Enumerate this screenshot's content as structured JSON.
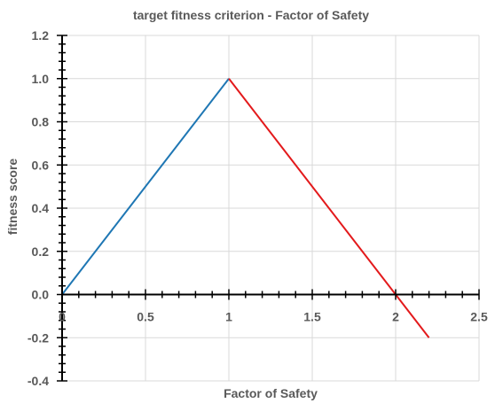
{
  "chart_data": {
    "type": "line",
    "title": "target fitness criterion - Factor of Safety",
    "xlabel": "Factor of Safety",
    "ylabel": "fitness score",
    "xlim": [
      0,
      2.5
    ],
    "ylim": [
      -0.4,
      1.2
    ],
    "x_ticks": [
      0,
      0.5,
      1,
      1.5,
      2,
      2.5
    ],
    "x_tick_labels": [
      "0",
      "0.5",
      "1",
      "1.5",
      "2",
      "2.5"
    ],
    "y_ticks": [
      -0.4,
      -0.2,
      0.0,
      0.2,
      0.4,
      0.6,
      0.8,
      1.0,
      1.2
    ],
    "y_tick_labels": [
      "-0.4",
      "-0.2",
      "0.0",
      "0.2",
      "0.4",
      "0.6",
      "0.8",
      "1.0",
      "1.2"
    ],
    "grid": true,
    "legend": "none",
    "series": [
      {
        "color": "#1f77b4",
        "x": [
          0,
          0.1,
          0.2,
          0.3,
          0.4,
          0.5,
          0.6,
          0.7,
          0.8,
          0.9,
          1.0
        ],
        "y": [
          0,
          0.1,
          0.2,
          0.3,
          0.4,
          0.5,
          0.6,
          0.7,
          0.8,
          0.9,
          1.0
        ]
      },
      {
        "color": "#e31a1c",
        "x": [
          1.0,
          1.1,
          1.2,
          1.3,
          1.4,
          1.5,
          1.6,
          1.7,
          1.8,
          1.9,
          2.0,
          2.1,
          2.2
        ],
        "y": [
          1.0,
          0.9,
          0.8,
          0.7,
          0.6,
          0.5,
          0.4,
          0.3,
          0.2,
          0.1,
          0.0,
          -0.1,
          -0.2
        ]
      }
    ]
  }
}
